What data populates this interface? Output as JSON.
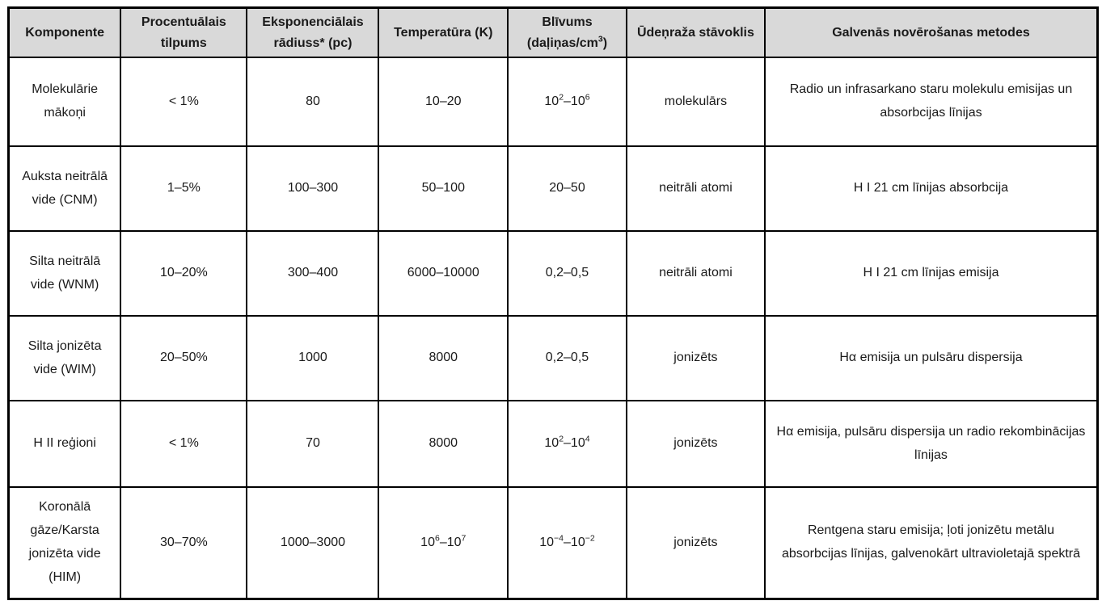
{
  "colors": {
    "header_bg": "#d9d9d9",
    "border": "#000000",
    "text": "#1a1a1a",
    "body_bg": "#ffffff"
  },
  "table": {
    "columns": [
      "Komponente",
      "Procentuālais tilpums",
      "Eksponenciālais rādiuss* (pc)",
      "Temperatūra (K)",
      "Blīvums (daļiņas/cm^{3})",
      "Ūdeņraža stāvoklis",
      "Galvenās novērošanas metodes"
    ],
    "rows": [
      {
        "cells": [
          "Molekulārie mākoņi",
          "< 1%",
          "80",
          "10–20",
          "10^{2}–10^{6}",
          "molekulārs",
          "Radio un infrasarkano staru molekulu emisijas un absorbcijas līnijas"
        ]
      },
      {
        "cells": [
          "Auksta neitrālā vide (CNM)",
          "1–5%",
          "100–300",
          "50–100",
          "20–50",
          "neitrāli atomi",
          "H I 21 cm līnijas absorbcija"
        ]
      },
      {
        "cells": [
          "Silta neitrālā vide (WNM)",
          "10–20%",
          "300–400",
          "6000–10000",
          "0,2–0,5",
          "neitrāli atomi",
          "H I 21 cm līnijas emisija"
        ]
      },
      {
        "cells": [
          "Silta jonizēta vide (WIM)",
          "20–50%",
          "1000",
          "8000",
          "0,2–0,5",
          "jonizēts",
          "Hα emisija un pulsāru dispersija"
        ]
      },
      {
        "cells": [
          "H II reģioni",
          "< 1%",
          "70",
          "8000",
          "10^{2}–10^{4}",
          "jonizēts",
          "Hα emisija, pulsāru dispersija un radio rekombinācijas līnijas"
        ]
      },
      {
        "cells": [
          "Koronālā gāze/Karsta jonizēta vide (HIM)",
          "30–70%",
          "1000–3000",
          "10^{6}–10^{7}",
          "10^{−4}–10^{−2}",
          "jonizēts",
          "Rentgena staru emisija; ļoti jonizētu metālu absorbcijas līnijas, galvenokārt ultravioletajā spektrā"
        ]
      }
    ]
  }
}
